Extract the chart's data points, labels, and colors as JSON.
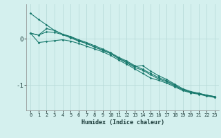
{
  "xlabel": "Humidex (Indice chaleur)",
  "ylabel": "",
  "background_color": "#d4f0ee",
  "line_color": "#1a7a6e",
  "grid_color": "#b8dbd9",
  "x_values": [
    0,
    1,
    2,
    3,
    4,
    5,
    6,
    7,
    8,
    9,
    10,
    11,
    12,
    13,
    14,
    15,
    16,
    17,
    18,
    19,
    20,
    21,
    22,
    23
  ],
  "series": [
    [
      0.12,
      0.08,
      0.22,
      0.18,
      0.1,
      0.05,
      -0.02,
      -0.08,
      -0.15,
      -0.22,
      -0.3,
      -0.4,
      -0.48,
      -0.58,
      -0.66,
      -0.75,
      -0.84,
      -0.91,
      -1.0,
      -1.1,
      -1.15,
      -1.18,
      -1.22,
      -1.25
    ],
    [
      0.55,
      0.42,
      0.3,
      0.18,
      0.1,
      0.04,
      -0.04,
      -0.1,
      -0.18,
      -0.25,
      -0.32,
      -0.42,
      -0.5,
      -0.6,
      -0.58,
      -0.7,
      -0.8,
      -0.88,
      -0.98,
      -1.08,
      -1.14,
      -1.18,
      -1.22,
      -1.25
    ],
    [
      0.12,
      0.08,
      0.15,
      0.14,
      0.09,
      0.02,
      -0.05,
      -0.1,
      -0.18,
      -0.24,
      -0.32,
      -0.43,
      -0.52,
      -0.62,
      -0.68,
      -0.78,
      -0.87,
      -0.93,
      -1.02,
      -1.1,
      -1.16,
      -1.19,
      -1.23,
      -1.26
    ],
    [
      0.12,
      -0.08,
      -0.06,
      -0.04,
      -0.02,
      -0.05,
      -0.1,
      -0.16,
      -0.22,
      -0.28,
      -0.36,
      -0.46,
      -0.55,
      -0.65,
      -0.75,
      -0.85,
      -0.9,
      -0.96,
      -1.04,
      -1.12,
      -1.17,
      -1.2,
      -1.24,
      -1.27
    ]
  ],
  "xlim": [
    -0.5,
    23.5
  ],
  "ylim": [
    -1.55,
    0.75
  ],
  "yticks": [
    -1.0,
    0.0
  ],
  "xticks": [
    0,
    1,
    2,
    3,
    4,
    5,
    6,
    7,
    8,
    9,
    10,
    11,
    12,
    13,
    14,
    15,
    16,
    17,
    18,
    19,
    20,
    21,
    22,
    23
  ],
  "figsize": [
    3.2,
    2.0
  ],
  "dpi": 100
}
